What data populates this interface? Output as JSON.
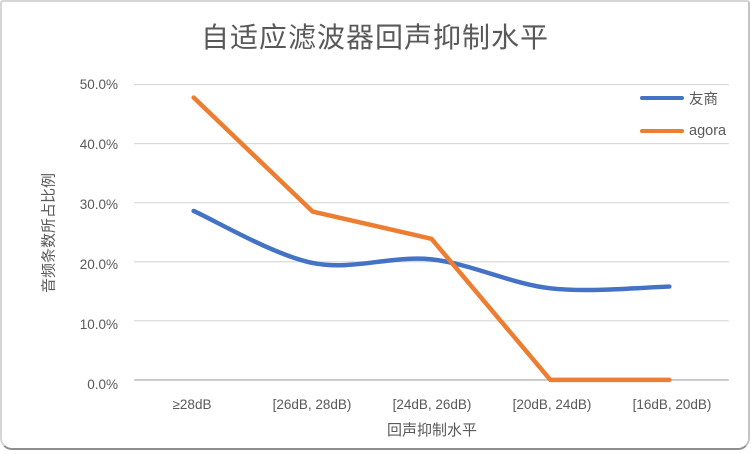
{
  "chart_data": {
    "type": "line",
    "title": "自适应滤波器回声抑制水平",
    "xlabel": "回声抑制水平",
    "ylabel": "音频条数所占比例",
    "categories": [
      "≥28dB",
      "[26dB, 28dB)",
      "[24dB, 26dB)",
      "[20dB, 24dB)",
      "[16dB, 20dB)"
    ],
    "y_ticks": [
      "50.0%",
      "40.0%",
      "30.0%",
      "20.0%",
      "10.0%",
      "0.0%"
    ],
    "ylim": [
      0,
      50
    ],
    "grid": true,
    "legend_position": "right",
    "series": [
      {
        "name": "友商",
        "color": "#4472C4",
        "smooth": true,
        "values": [
          28.6,
          19.8,
          20.4,
          15.5,
          15.8
        ]
      },
      {
        "name": "agora",
        "color": "#ED7D31",
        "smooth": false,
        "values": [
          47.8,
          28.5,
          23.9,
          0.0,
          0.0
        ]
      }
    ],
    "colors": {
      "gridline": "#d9d9d9",
      "axis_line": "#bfbfbf",
      "text": "#595959"
    }
  }
}
